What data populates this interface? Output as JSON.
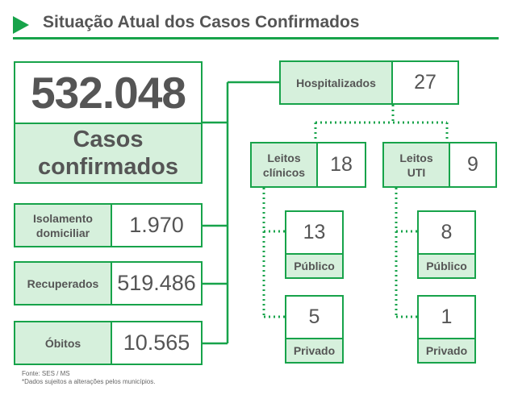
{
  "header": {
    "title": "Situação Atual dos Casos Confirmados",
    "accent_color": "#17a34a",
    "label_bg": "#d6f0dc"
  },
  "total": {
    "value": "532.048",
    "label_line1": "Casos",
    "label_line2": "confirmados"
  },
  "status": [
    {
      "label_line1": "Isolamento",
      "label_line2": "domiciliar",
      "value": "1.970"
    },
    {
      "label_line1": "Recuperados",
      "label_line2": "",
      "value": "519.486"
    },
    {
      "label_line1": "Óbitos",
      "label_line2": "",
      "value": "10.565"
    }
  ],
  "hospital": {
    "label": "Hospitalizados",
    "value": "27",
    "clinical": {
      "label_line1": "Leitos",
      "label_line2": "clínicos",
      "value": "18",
      "public": {
        "value": "13",
        "label": "Público"
      },
      "private": {
        "value": "5",
        "label": "Privado"
      }
    },
    "icu": {
      "label_line1": "Leitos",
      "label_line2": "UTI",
      "value": "9",
      "public": {
        "value": "8",
        "label": "Público"
      },
      "private": {
        "value": "1",
        "label": "Privado"
      }
    }
  },
  "footer": {
    "source": "Fonte: SES / MS",
    "note": "*Dados sujeitos a alterações pelos municípios."
  }
}
